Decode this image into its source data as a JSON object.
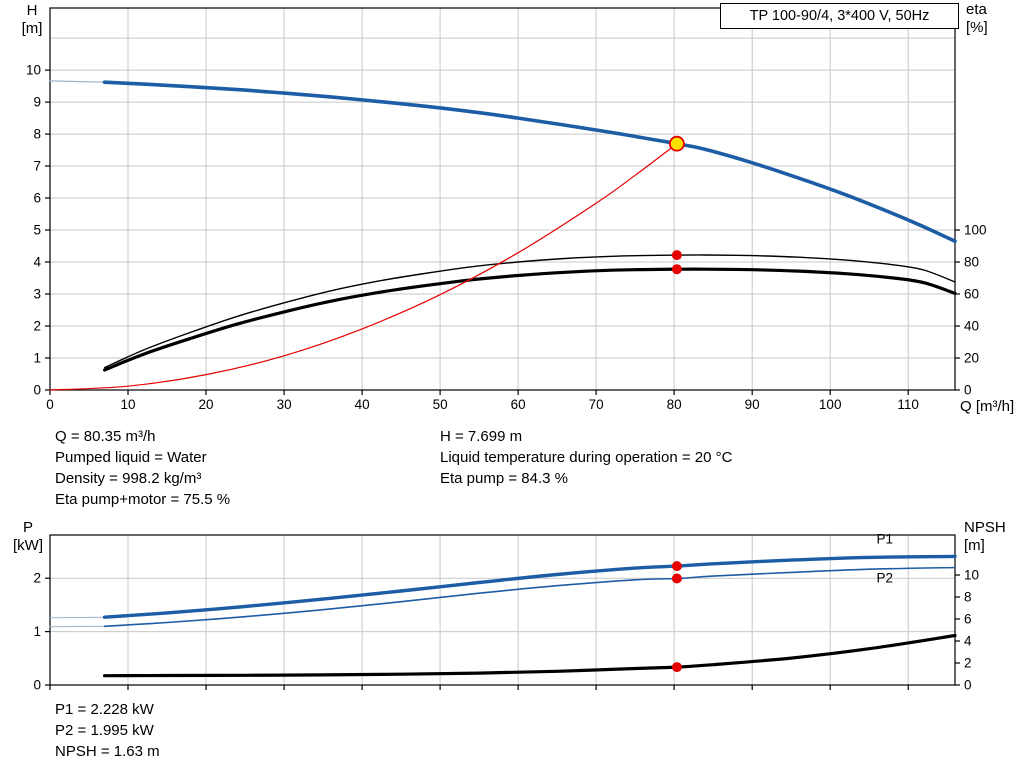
{
  "title_box": {
    "label": "TP 100-90/4, 3*400 V, 50Hz"
  },
  "axis_labels": {
    "top_left_line1": "H",
    "top_left_line2": "[m]",
    "top_right_line1": "eta",
    "top_right_line2": "[%]",
    "x_axis": "Q [m³/h]",
    "bottom_left_line1": "P",
    "bottom_left_line2": "[kW]",
    "bottom_right_line1": "NPSH",
    "bottom_right_line2": "[m]"
  },
  "info": {
    "left": [
      "Q = 80.35 m³/h",
      "Pumped liquid = Water",
      "Density = 998.2 kg/m³",
      "Eta pump+motor = 75.5 %"
    ],
    "right": [
      "H = 7.699 m",
      "Liquid temperature during operation = 20 °C",
      "Eta pump = 84.3 %"
    ]
  },
  "bottom_info": [
    "P1 = 2.228 kW",
    "P2 = 1.995 kW",
    "NPSH = 1.63 m"
  ],
  "colors": {
    "curve_blue": "#1d5da5",
    "curve_black": "#000000",
    "curve_red": "#e60000",
    "marker_yellow": "#ffe100",
    "extension_gray": "#9db3c7",
    "grid": "#c8c8c8",
    "axis": "#000000"
  },
  "chart_data": [
    {
      "type": "line",
      "title": "TP 100-90/4, 3*400 V, 50Hz",
      "xlabel": "Q [m³/h]",
      "ylabel_left": "H [m]",
      "ylabel_right": "eta [%]",
      "xlim": [
        0,
        116
      ],
      "ylim_left": [
        0,
        11.94
      ],
      "ylim_right": [
        0,
        238.8
      ],
      "x_ticks": [
        0,
        10,
        20,
        30,
        40,
        50,
        60,
        70,
        80,
        90,
        100,
        110
      ],
      "show_x_tick_labels": true,
      "y_ticks_left": [
        0,
        1,
        2,
        3,
        4,
        5,
        6,
        7,
        8,
        9,
        10
      ],
      "y_ticks_right": [
        0,
        20,
        40,
        60,
        80,
        100
      ],
      "y_grid_left": [
        1,
        2,
        3,
        4,
        5,
        6,
        7,
        8,
        9,
        10,
        11
      ],
      "grid": true,
      "series": [
        {
          "name": "H curve extension",
          "axis": "left",
          "color": "#9db3c7",
          "width": 1.2,
          "points": [
            [
              0,
              9.66
            ],
            [
              7,
              9.62
            ]
          ]
        },
        {
          "name": "H pump curve",
          "axis": "left",
          "color": "#1d5da5",
          "width": 3.6,
          "points": [
            [
              7,
              9.62
            ],
            [
              12,
              9.56
            ],
            [
              18,
              9.48
            ],
            [
              24,
              9.39
            ],
            [
              30,
              9.28
            ],
            [
              36,
              9.16
            ],
            [
              42,
              9.02
            ],
            [
              48,
              8.87
            ],
            [
              54,
              8.7
            ],
            [
              60,
              8.5
            ],
            [
              66,
              8.28
            ],
            [
              72,
              8.05
            ],
            [
              78,
              7.8
            ],
            [
              80.35,
              7.699
            ],
            [
              84,
              7.52
            ],
            [
              90,
              7.1
            ],
            [
              96,
              6.62
            ],
            [
              102,
              6.1
            ],
            [
              108,
              5.52
            ],
            [
              112,
              5.1
            ],
            [
              116,
              4.65
            ]
          ]
        },
        {
          "name": "eta pump",
          "axis": "right",
          "color": "#000000",
          "width": 1.4,
          "points": [
            [
              7,
              14
            ],
            [
              12,
              25
            ],
            [
              18,
              36
            ],
            [
              24,
              46
            ],
            [
              30,
              54.5
            ],
            [
              36,
              62
            ],
            [
              42,
              68
            ],
            [
              48,
              72.8
            ],
            [
              54,
              77
            ],
            [
              60,
              80
            ],
            [
              66,
              82.2
            ],
            [
              72,
              83.6
            ],
            [
              78,
              84.2
            ],
            [
              80.35,
              84.3
            ],
            [
              84,
              84.4
            ],
            [
              90,
              84
            ],
            [
              96,
              83
            ],
            [
              102,
              81.2
            ],
            [
              108,
              78.3
            ],
            [
              112,
              75
            ],
            [
              116,
              67.5
            ]
          ]
        },
        {
          "name": "eta pump+motor",
          "axis": "right",
          "color": "#000000",
          "width": 3.2,
          "points": [
            [
              7,
              12.5
            ],
            [
              12,
              22.4
            ],
            [
              18,
              32.2
            ],
            [
              24,
              41.2
            ],
            [
              30,
              48.8
            ],
            [
              36,
              55.5
            ],
            [
              42,
              60.9
            ],
            [
              48,
              65.2
            ],
            [
              54,
              68.9
            ],
            [
              60,
              71.6
            ],
            [
              66,
              73.6
            ],
            [
              72,
              74.9
            ],
            [
              78,
              75.4
            ],
            [
              80.35,
              75.5
            ],
            [
              84,
              75.5
            ],
            [
              90,
              75.2
            ],
            [
              96,
              74.3
            ],
            [
              102,
              72.7
            ],
            [
              108,
              70.1
            ],
            [
              112,
              67.1
            ],
            [
              116,
              60.4
            ]
          ]
        },
        {
          "name": "system curve",
          "axis": "left",
          "color": "#e60000",
          "width": 1.2,
          "points": [
            [
              0,
              0
            ],
            [
              10,
              0.12
            ],
            [
              20,
              0.48
            ],
            [
              30,
              1.07
            ],
            [
              40,
              1.91
            ],
            [
              50,
              2.98
            ],
            [
              60,
              4.29
            ],
            [
              70,
              5.84
            ],
            [
              75,
              6.71
            ],
            [
              80.35,
              7.699
            ]
          ]
        }
      ],
      "markers": [
        {
          "name": "duty-point",
          "axis": "left",
          "x": 80.35,
          "y": 7.699,
          "r": 7,
          "fill": "#ffe100",
          "stroke": "#e60000",
          "stroke_width": 1.8
        },
        {
          "name": "eta-pump-point",
          "axis": "right",
          "x": 80.35,
          "y": 84.3,
          "r": 5,
          "fill": "#e60000",
          "stroke": "none",
          "stroke_width": 0
        },
        {
          "name": "eta-pump-motor-point",
          "axis": "right",
          "x": 80.35,
          "y": 75.5,
          "r": 5,
          "fill": "#e60000",
          "stroke": "none",
          "stroke_width": 0
        }
      ],
      "annotations": []
    },
    {
      "type": "line",
      "title": "",
      "xlabel": "",
      "ylabel_left": "P [kW]",
      "ylabel_right": "NPSH [m]",
      "xlim": [
        0,
        116
      ],
      "ylim_left": [
        0,
        2.81
      ],
      "ylim_right": [
        0,
        13.64
      ],
      "x_ticks": [
        0,
        10,
        20,
        30,
        40,
        50,
        60,
        70,
        80,
        90,
        100,
        110
      ],
      "show_x_tick_labels": false,
      "y_ticks_left": [
        0,
        1,
        2
      ],
      "y_ticks_right": [
        0,
        2,
        4,
        6,
        8,
        10
      ],
      "y_grid_left": [
        1,
        2
      ],
      "grid": true,
      "series": [
        {
          "name": "P1 extension",
          "axis": "left",
          "color": "#9db3c7",
          "width": 1,
          "points": [
            [
              0,
              1.26
            ],
            [
              7,
              1.27
            ]
          ]
        },
        {
          "name": "P2 extension",
          "axis": "left",
          "color": "#9db3c7",
          "width": 1,
          "points": [
            [
              0,
              1.09
            ],
            [
              7,
              1.1
            ]
          ]
        },
        {
          "name": "P1",
          "axis": "left",
          "color": "#1d5da5",
          "width": 3.4,
          "points": [
            [
              7,
              1.27
            ],
            [
              15,
              1.35
            ],
            [
              25,
              1.47
            ],
            [
              35,
              1.61
            ],
            [
              45,
              1.76
            ],
            [
              55,
              1.92
            ],
            [
              65,
              2.07
            ],
            [
              75,
              2.19
            ],
            [
              80.35,
              2.228
            ],
            [
              85,
              2.27
            ],
            [
              95,
              2.34
            ],
            [
              105,
              2.39
            ],
            [
              116,
              2.41
            ]
          ]
        },
        {
          "name": "P2",
          "axis": "left",
          "color": "#1d5da5",
          "width": 1.6,
          "points": [
            [
              7,
              1.1
            ],
            [
              15,
              1.17
            ],
            [
              25,
              1.28
            ],
            [
              35,
              1.41
            ],
            [
              45,
              1.56
            ],
            [
              55,
              1.72
            ],
            [
              65,
              1.86
            ],
            [
              75,
              1.97
            ],
            [
              80.35,
              1.995
            ],
            [
              85,
              2.04
            ],
            [
              95,
              2.11
            ],
            [
              105,
              2.17
            ],
            [
              116,
              2.2
            ]
          ]
        },
        {
          "name": "NPSH",
          "axis": "right",
          "color": "#000000",
          "width": 3.2,
          "points": [
            [
              7,
              0.85
            ],
            [
              15,
              0.86
            ],
            [
              25,
              0.88
            ],
            [
              35,
              0.92
            ],
            [
              45,
              0.98
            ],
            [
              55,
              1.08
            ],
            [
              65,
              1.25
            ],
            [
              75,
              1.5
            ],
            [
              80.35,
              1.63
            ],
            [
              85,
              1.85
            ],
            [
              95,
              2.45
            ],
            [
              105,
              3.3
            ],
            [
              116,
              4.5
            ]
          ]
        }
      ],
      "markers": [
        {
          "name": "p1-point",
          "axis": "left",
          "x": 80.35,
          "y": 2.228,
          "r": 5,
          "fill": "#e60000",
          "stroke": "none",
          "stroke_width": 0
        },
        {
          "name": "p2-point",
          "axis": "left",
          "x": 80.35,
          "y": 1.995,
          "r": 5,
          "fill": "#e60000",
          "stroke": "none",
          "stroke_width": 0
        },
        {
          "name": "npsh-point",
          "axis": "right",
          "x": 80.35,
          "y": 1.63,
          "r": 5,
          "fill": "#e60000",
          "stroke": "none",
          "stroke_width": 0
        }
      ],
      "annotations": [
        {
          "text": "P1",
          "x": 107,
          "y": 2.65,
          "color": "#1d5da5"
        },
        {
          "text": "P2",
          "x": 107,
          "y": 1.92,
          "color": "#1d5da5"
        }
      ]
    }
  ]
}
